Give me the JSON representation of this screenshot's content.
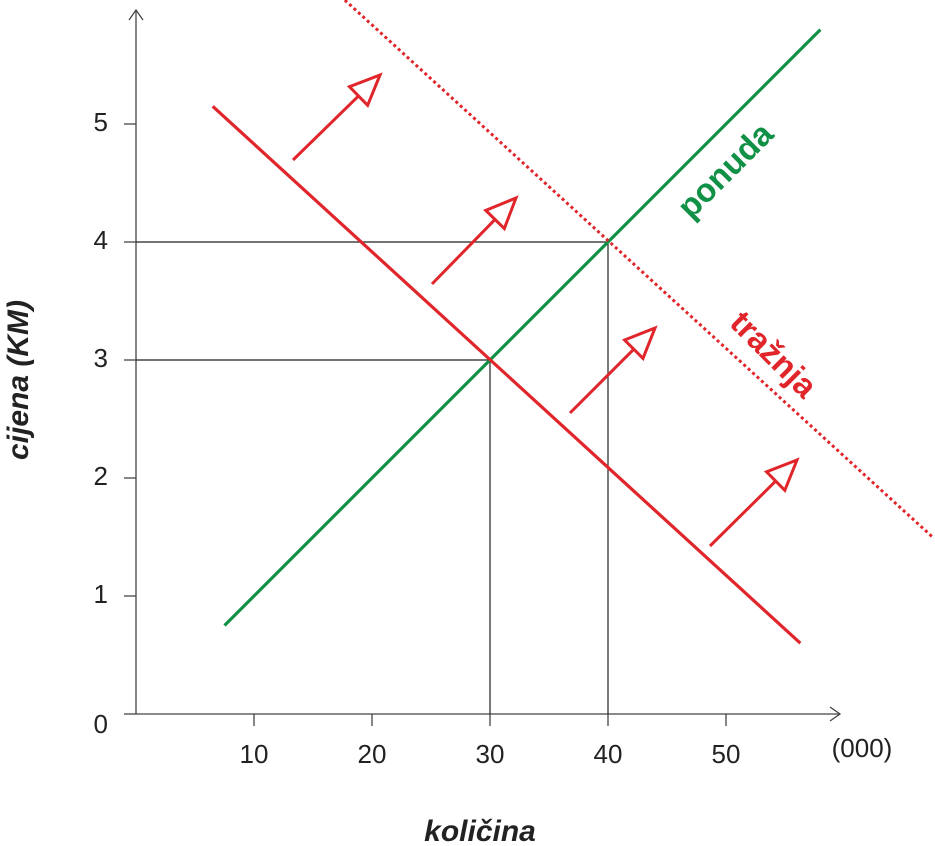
{
  "chart_data": {
    "type": "line",
    "xlabel": "količina",
    "ylabel": "cijena (KM)",
    "xunit": "(000)",
    "xlim": [
      0,
      60
    ],
    "ylim": [
      0,
      6
    ],
    "xticks": [
      10,
      20,
      30,
      40,
      50
    ],
    "yticks": [
      0,
      1,
      2,
      3,
      4,
      5
    ],
    "series": [
      {
        "name": "ponuda",
        "color": "#119146",
        "style": "solid",
        "x": [
          7.5,
          58
        ],
        "values": [
          0.75,
          5.8
        ]
      },
      {
        "color": "#e0262b",
        "style": "solid",
        "x": [
          6.5,
          56.3
        ],
        "values": [
          5.15,
          0.6
        ]
      },
      {
        "name": "tražnja",
        "color": "#e0262b",
        "style": "dotted",
        "x": [
          17.7,
          67.5
        ],
        "values": [
          6.05,
          1.5
        ]
      }
    ],
    "guides": [
      {
        "x": 30,
        "y": 3
      },
      {
        "x": 40,
        "y": 4
      }
    ]
  }
}
